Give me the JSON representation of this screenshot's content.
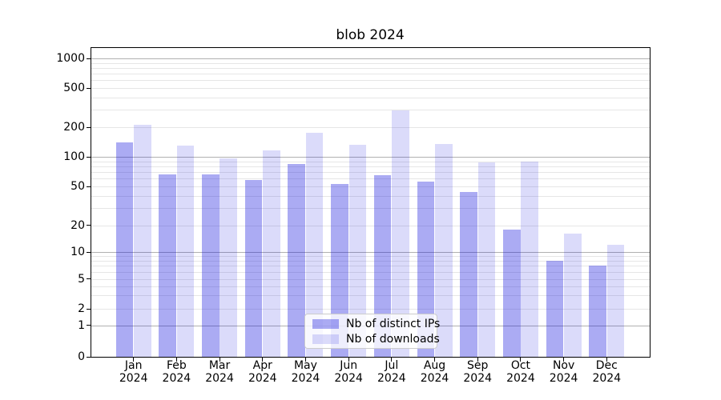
{
  "title": "blob 2024",
  "chart_data": {
    "type": "bar",
    "title": "blob 2024",
    "categories": [
      "Jan 2024",
      "Feb 2024",
      "Mar 2024",
      "Apr 2024",
      "May 2024",
      "Jun 2024",
      "Jul 2024",
      "Aug 2024",
      "Sep 2024",
      "Oct 2024",
      "Nov 2024",
      "Dec 2024"
    ],
    "months": [
      "Jan",
      "Feb",
      "Mar",
      "Apr",
      "May",
      "Jun",
      "Jul",
      "Aug",
      "Sep",
      "Oct",
      "Nov",
      "Dec"
    ],
    "year": "2024",
    "series": [
      {
        "name": "Nb of distinct IPs",
        "color": "#a8a8f1",
        "values": [
          140,
          66,
          66,
          58,
          84,
          53,
          65,
          56,
          44,
          18,
          8,
          7
        ]
      },
      {
        "name": "Nb of downloads",
        "color": "#d9d9f9",
        "values": [
          210,
          131,
          97,
          116,
          175,
          133,
          295,
          136,
          88,
          89,
          16,
          12
        ]
      }
    ],
    "yscale": "symlog",
    "ylim": [
      0,
      1000
    ],
    "yticks": [
      0,
      1,
      2,
      5,
      10,
      20,
      50,
      100,
      200,
      500,
      1000
    ],
    "ytick_labels": [
      "0",
      "1",
      "2",
      "5",
      "10",
      "20",
      "50",
      "100",
      "200",
      "500",
      "1000"
    ],
    "grid": "both",
    "major_grid_color": "#b0b0b0",
    "minor_grid_color": "#e6e6e6",
    "legend_position": "lower center"
  }
}
